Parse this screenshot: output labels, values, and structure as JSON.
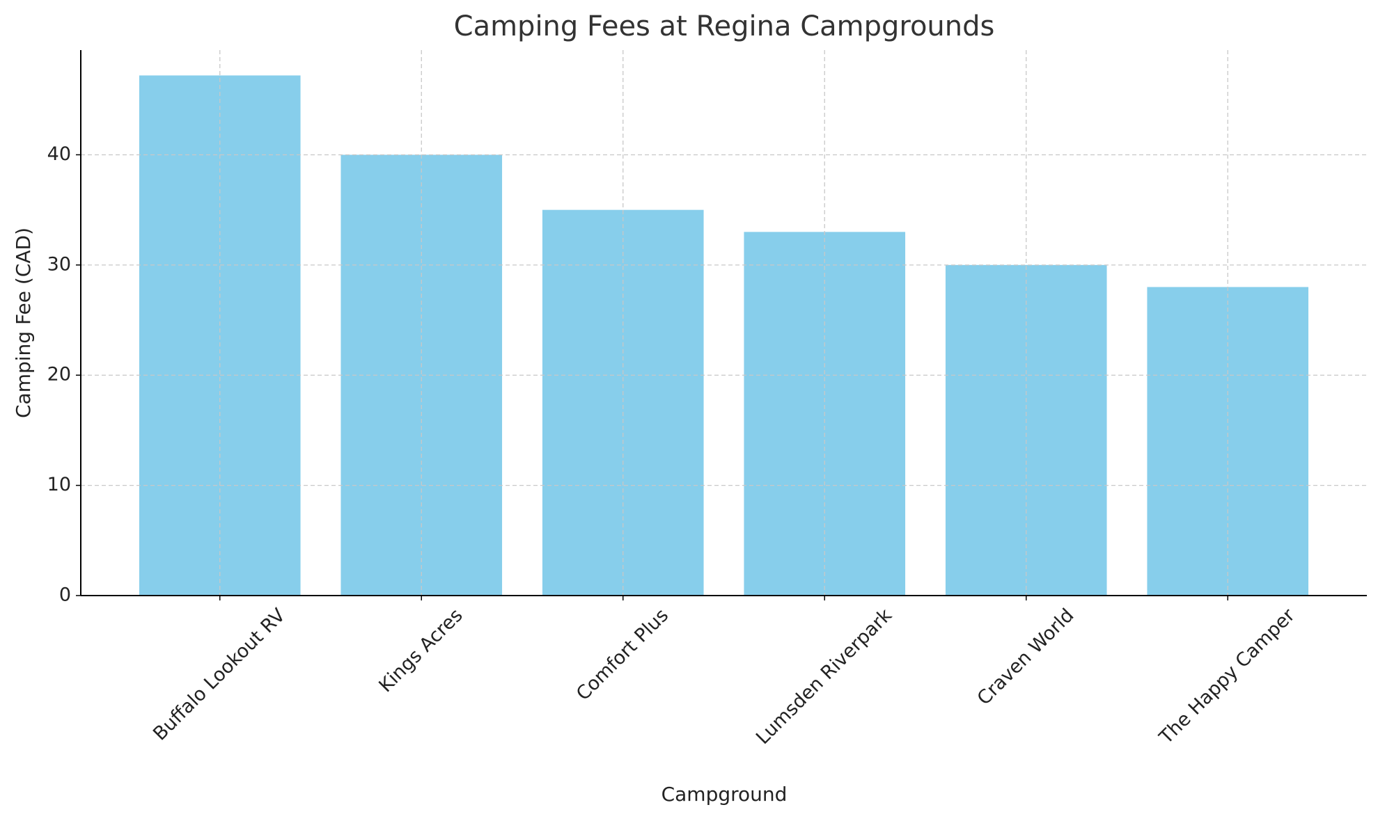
{
  "chart_data": {
    "type": "bar",
    "title": "Camping Fees at Regina Campgrounds",
    "x_label": "Campground",
    "y_label": "Camping Fee (CAD)",
    "categories": [
      "Buffalo Lookout RV",
      "Kings Acres",
      "Comfort Plus",
      "Lumsden Riverpark",
      "Craven World",
      "The Happy Camper"
    ],
    "values": [
      47.2,
      40,
      35,
      33,
      30,
      28
    ],
    "color": "#87ceeb",
    "ylim": [
      0,
      49.5
    ],
    "yticks": [
      0,
      10,
      20,
      30,
      40
    ],
    "grid": true
  }
}
